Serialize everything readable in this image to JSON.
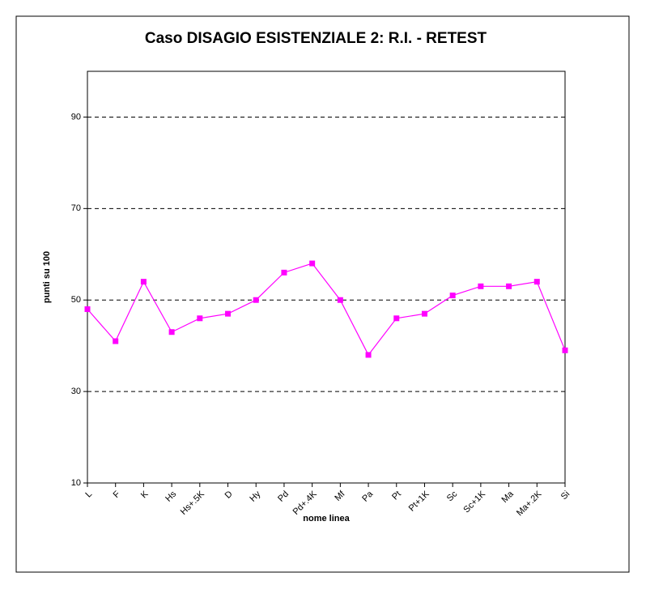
{
  "chart_data": {
    "type": "line",
    "title": "Caso DISAGIO ESISTENZIALE 2: R.I. - RETEST",
    "x_label": "nome linea",
    "y_label": "punti su 100",
    "categories": [
      "L",
      "F",
      "K",
      "Hs",
      "Hs+.5K",
      "D",
      "Hy",
      "Pd",
      "Pd+.4K",
      "Mf",
      "Pa",
      "Pt",
      "Pt+1K",
      "Sc",
      "Sc+1K",
      "Ma",
      "Ma+.2K",
      "Si"
    ],
    "series": [
      {
        "name": "R.I. - RETEST",
        "color": "#ff00ff",
        "values": [
          48,
          41,
          54,
          43,
          46,
          47,
          50,
          56,
          58,
          50,
          38,
          46,
          47,
          51,
          53,
          53,
          54,
          39
        ]
      }
    ],
    "ylim": [
      10,
      100
    ],
    "yticks": [
      10,
      30,
      50,
      70,
      90
    ],
    "grid": true
  }
}
